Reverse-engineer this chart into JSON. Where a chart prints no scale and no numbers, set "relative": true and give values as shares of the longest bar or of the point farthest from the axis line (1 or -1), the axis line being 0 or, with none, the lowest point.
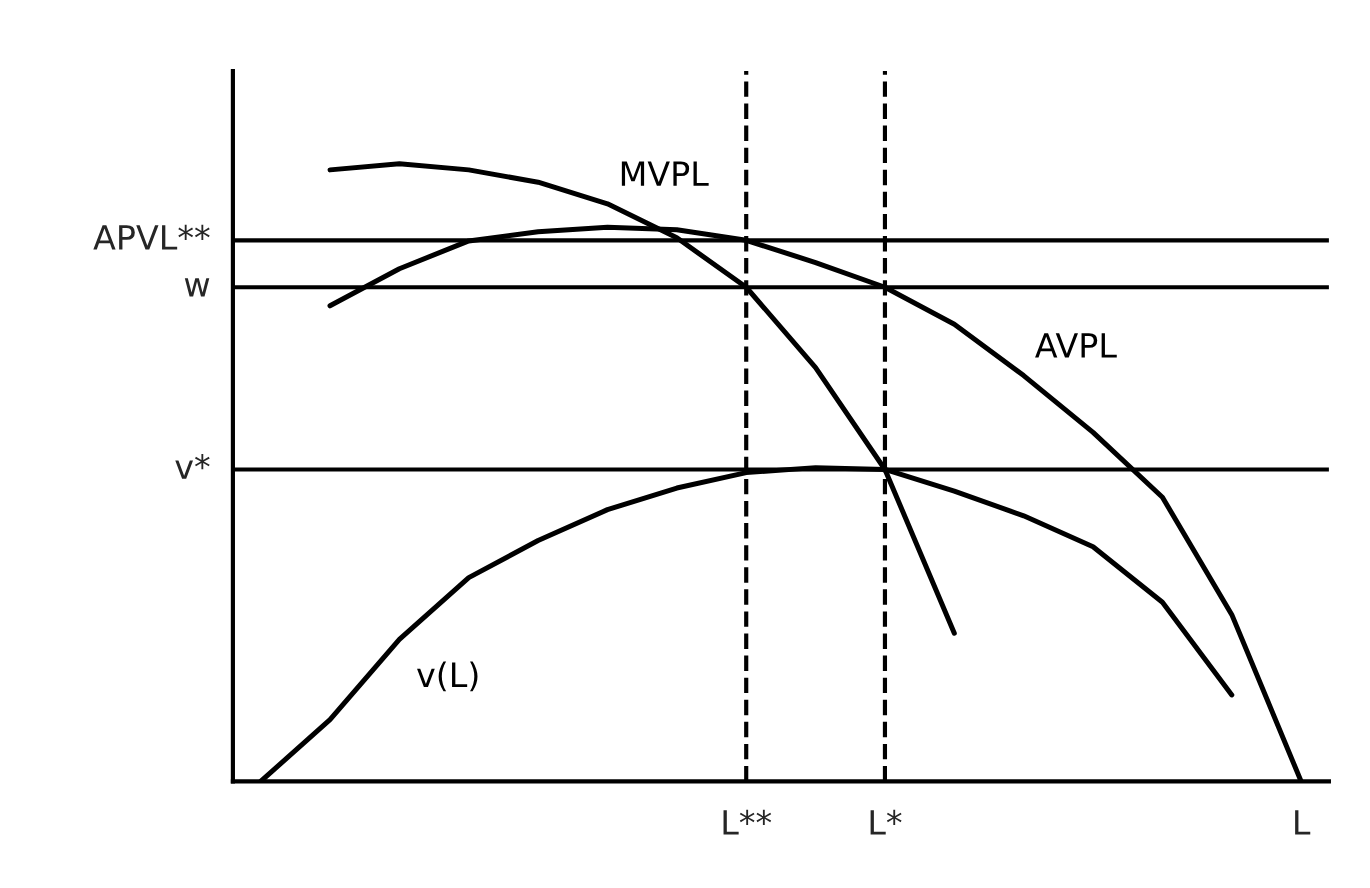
{
  "chart_data": {
    "type": "line",
    "relative": true,
    "tick_labels": "x",
    "legend": false,
    "marker": "none",
    "line_style": "solid",
    "categories": [
      null,
      null,
      null,
      null,
      null,
      null,
      null,
      "L**",
      null,
      "L*",
      null,
      null,
      null,
      null,
      null,
      "L"
    ],
    "series": [
      {
        "name": "MVPL",
        "color": "#000000",
        "values": [
          null,
          0.99,
          1.0,
          0.99,
          0.97,
          0.935,
          0.88,
          0.8,
          0.67,
          0.505,
          0.24,
          null,
          null,
          null,
          null,
          null
        ]
      },
      {
        "name": "AVPL",
        "color": "#000000",
        "values": [
          null,
          0.77,
          0.83,
          0.875,
          0.89,
          0.897,
          0.893,
          0.876,
          0.84,
          0.8,
          0.74,
          0.657,
          0.565,
          0.46,
          0.27,
          0.0
        ]
      },
      {
        "name": "v(L)",
        "color": "#000000",
        "values": [
          0.0,
          0.1,
          0.23,
          0.33,
          0.39,
          0.44,
          0.475,
          0.5,
          0.508,
          0.505,
          0.47,
          0.43,
          0.38,
          0.29,
          0.14,
          null
        ]
      }
    ],
    "ref_lines": [
      {
        "axis": "y",
        "value": 0.876,
        "label": "APVL**",
        "color": "#000000",
        "line_style": "solid"
      },
      {
        "axis": "y",
        "value": 0.8,
        "label": "w",
        "color": "#000000",
        "line_style": "solid"
      },
      {
        "axis": "y",
        "value": 0.505,
        "label": "v*",
        "color": "#000000",
        "line_style": "solid"
      },
      {
        "axis": "x",
        "value": "L**",
        "color": "#000000",
        "line_style": "dashed"
      },
      {
        "axis": "x",
        "value": "L*",
        "color": "#000000",
        "line_style": "dashed"
      }
    ]
  }
}
